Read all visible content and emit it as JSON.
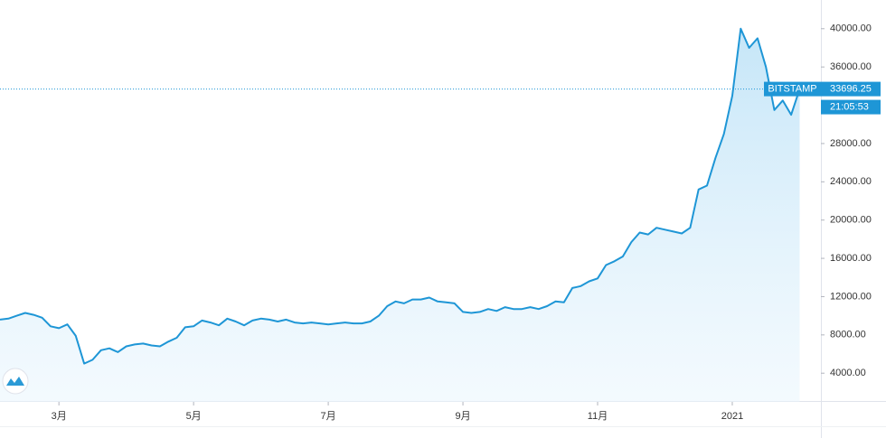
{
  "chart_data": {
    "type": "line",
    "categories": [
      null,
      null,
      null,
      null,
      null,
      null,
      null,
      "3月",
      null,
      null,
      null,
      null,
      null,
      null,
      null,
      null,
      null,
      null,
      null,
      null,
      null,
      null,
      null,
      "5月",
      null,
      null,
      null,
      null,
      null,
      null,
      null,
      null,
      null,
      null,
      null,
      null,
      null,
      null,
      null,
      "7月",
      null,
      null,
      null,
      null,
      null,
      null,
      null,
      null,
      null,
      null,
      null,
      null,
      null,
      null,
      null,
      "9月",
      null,
      null,
      null,
      null,
      null,
      null,
      null,
      null,
      null,
      null,
      null,
      null,
      null,
      null,
      null,
      "11月",
      null,
      null,
      null,
      null,
      null,
      null,
      null,
      null,
      null,
      null,
      null,
      null,
      null,
      null,
      null,
      "2021",
      null,
      null,
      null,
      null,
      null,
      null,
      null,
      null
    ],
    "series": [
      {
        "name": "BITSTAMP",
        "color": "#1e96d6",
        "values": [
          9600,
          9700,
          10000,
          10300,
          10100,
          9800,
          8900,
          8700,
          9100,
          7900,
          5000,
          5400,
          6400,
          6600,
          6200,
          6800,
          7000,
          7100,
          6900,
          6800,
          7300,
          7700,
          8800,
          8900,
          9500,
          9300,
          9000,
          9700,
          9400,
          9000,
          9500,
          9700,
          9600,
          9400,
          9600,
          9300,
          9200,
          9300,
          9200,
          9100,
          9200,
          9300,
          9200,
          9200,
          9400,
          10000,
          11000,
          11500,
          11300,
          11700,
          11700,
          11900,
          11500,
          11400,
          11300,
          10400,
          10300,
          10400,
          10700,
          10500,
          10900,
          10700,
          10700,
          10900,
          10700,
          11000,
          11500,
          11400,
          12900,
          13100,
          13600,
          13900,
          15300,
          15700,
          16200,
          17700,
          18700,
          18500,
          19200,
          19000,
          18800,
          18600,
          19200,
          23200,
          23600,
          26500,
          29000,
          33000,
          40000,
          38000,
          39000,
          36000,
          31500,
          32500,
          31000,
          33696.25
        ]
      }
    ],
    "ylim": [
      1000,
      43000
    ],
    "yticks": [
      {
        "value": 4000,
        "label": "4000.00"
      },
      {
        "value": 8000,
        "label": "8000.00"
      },
      {
        "value": 12000,
        "label": "12000.00"
      },
      {
        "value": 16000,
        "label": "16000.00"
      },
      {
        "value": 20000,
        "label": "20000.00"
      },
      {
        "value": 24000,
        "label": "24000.00"
      },
      {
        "value": 28000,
        "label": "28000.00"
      },
      {
        "value": 36000,
        "label": "36000.00"
      },
      {
        "value": 40000,
        "label": "40000.00"
      }
    ],
    "countdown": "21:05:53"
  }
}
